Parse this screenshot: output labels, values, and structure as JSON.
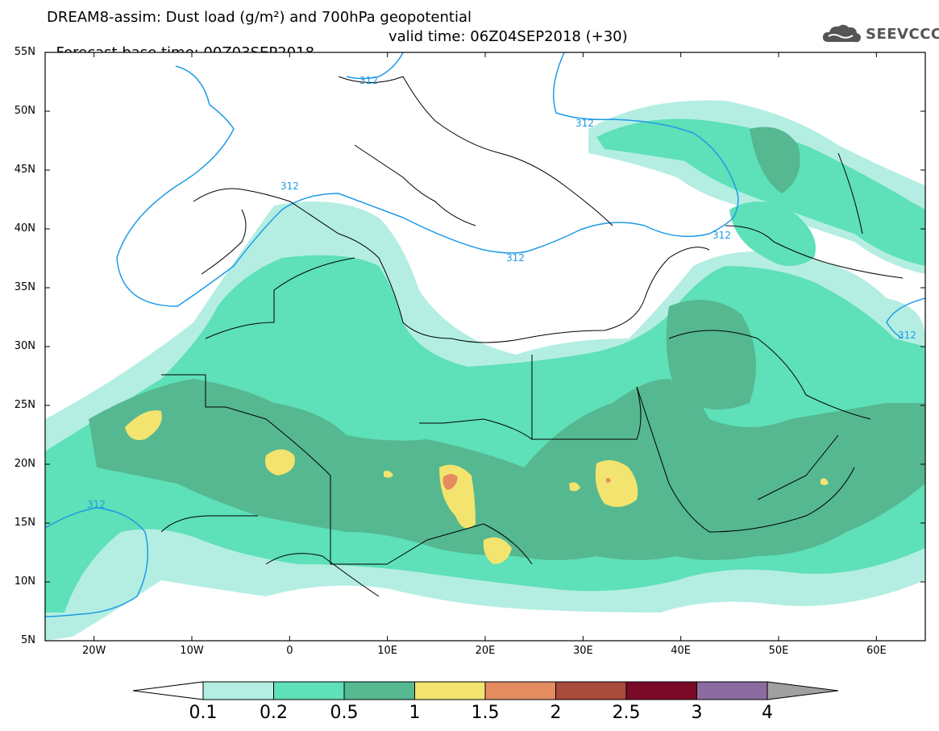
{
  "title": {
    "line1": "DREAM8-assim: Dust load (g/m²) and 700hPa geopotential",
    "line2_left": "Forecast base time: 00Z03SEP2018",
    "line2_right": "valid time: 06Z04SEP2018 (+30)"
  },
  "logo": {
    "text": "SEEVCCC",
    "icon": "cloud-logo-icon"
  },
  "map": {
    "lon_range": [
      -25,
      65
    ],
    "lat_range": [
      5,
      55
    ],
    "lat_labels": [
      "55N",
      "50N",
      "45N",
      "40N",
      "35N",
      "30N",
      "25N",
      "20N",
      "15N",
      "10N",
      "5N"
    ],
    "lon_labels": [
      "20W",
      "10W",
      "0",
      "10E",
      "20E",
      "30E",
      "40E",
      "50E",
      "60E"
    ],
    "contour_label": "312",
    "colors": {
      "lev01": "#b4eee2",
      "lev02": "#5ee0b8",
      "lev05": "#55b890",
      "lev1": "#f2e46e",
      "lev15": "#e48c60",
      "lev2": "#a84a3c",
      "lev25": "#7a0a28",
      "lev3": "#8c6ca0",
      "lev4": "#a0a0a0",
      "contour": "#1e9be6",
      "border": "#000000"
    }
  },
  "colorbar": {
    "labels": [
      "0.1",
      "0.2",
      "0.5",
      "1",
      "1.5",
      "2",
      "2.5",
      "3",
      "4"
    ],
    "colors": [
      "#b4eee2",
      "#5ee0b8",
      "#55b890",
      "#f2e46e",
      "#e48c60",
      "#a84a3c",
      "#7a0a28",
      "#8c6ca0"
    ],
    "over_color": "#a0a0a0",
    "under_color": "#ffffff"
  }
}
